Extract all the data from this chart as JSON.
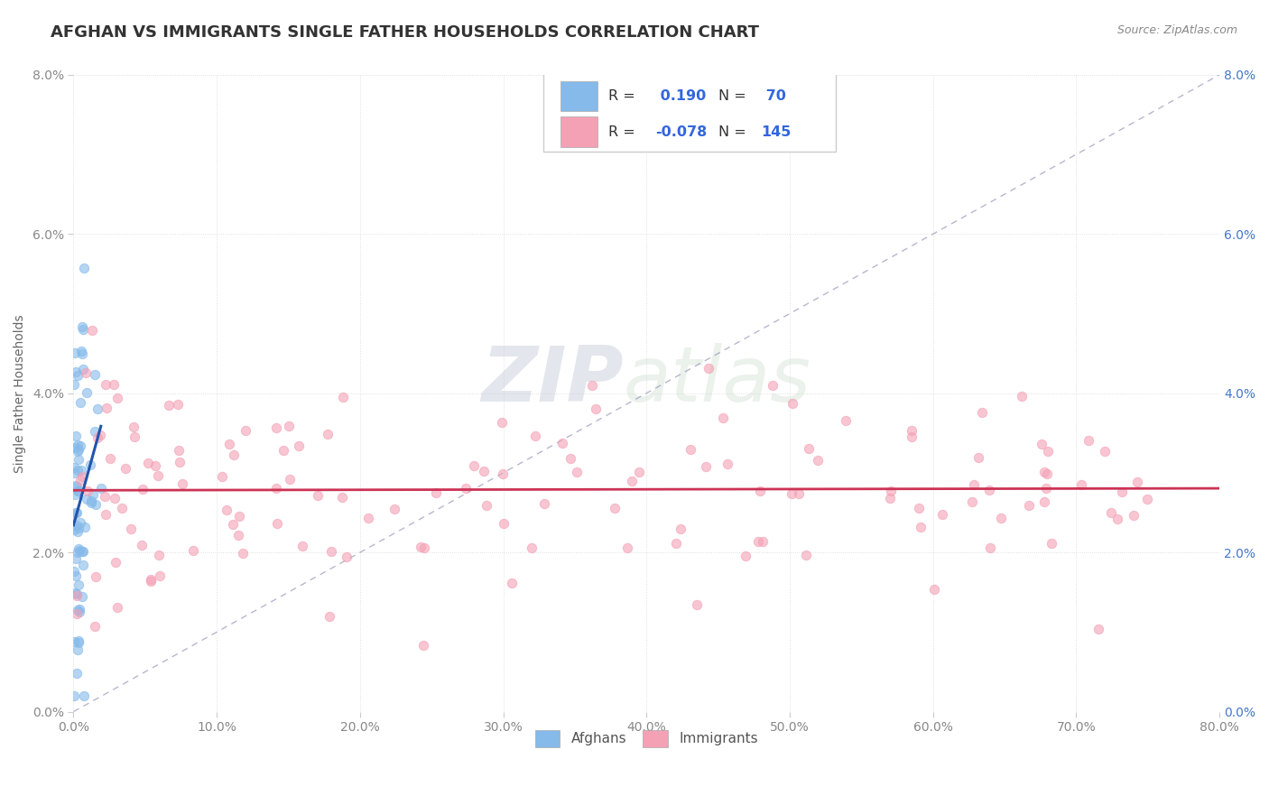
{
  "title": "AFGHAN VS IMMIGRANTS SINGLE FATHER HOUSEHOLDS CORRELATION CHART",
  "source_text": "Source: ZipAtlas.com",
  "ylabel": "Single Father Households",
  "xlim": [
    0.0,
    0.8
  ],
  "ylim": [
    0.0,
    0.08
  ],
  "xticks": [
    0.0,
    0.1,
    0.2,
    0.3,
    0.4,
    0.5,
    0.6,
    0.7,
    0.8
  ],
  "yticks": [
    0.0,
    0.02,
    0.04,
    0.06,
    0.08
  ],
  "xtick_labels": [
    "0.0%",
    "10.0%",
    "20.0%",
    "30.0%",
    "40.0%",
    "50.0%",
    "60.0%",
    "70.0%",
    "80.0%"
  ],
  "ytick_labels": [
    "0.0%",
    "2.0%",
    "4.0%",
    "6.0%",
    "8.0%"
  ],
  "blue_color": "#85BAEA",
  "pink_color": "#F4A0B5",
  "blue_R": 0.19,
  "blue_N": 70,
  "pink_R": -0.078,
  "pink_N": 145,
  "legend_label_afghans": "Afghans",
  "legend_label_immigrants": "Immigrants",
  "watermark_zip": "ZIP",
  "watermark_atlas": "atlas",
  "background_color": "#ffffff",
  "grid_color": "#d8d8d8",
  "title_fontsize": 13,
  "axis_label_fontsize": 10,
  "tick_fontsize": 10,
  "dashed_line_color": "#9999bb",
  "blue_trend_color": "#2255aa",
  "pink_trend_color": "#cc3355",
  "legend_value_color": "#3366dd",
  "legend_label_color": "#333333"
}
